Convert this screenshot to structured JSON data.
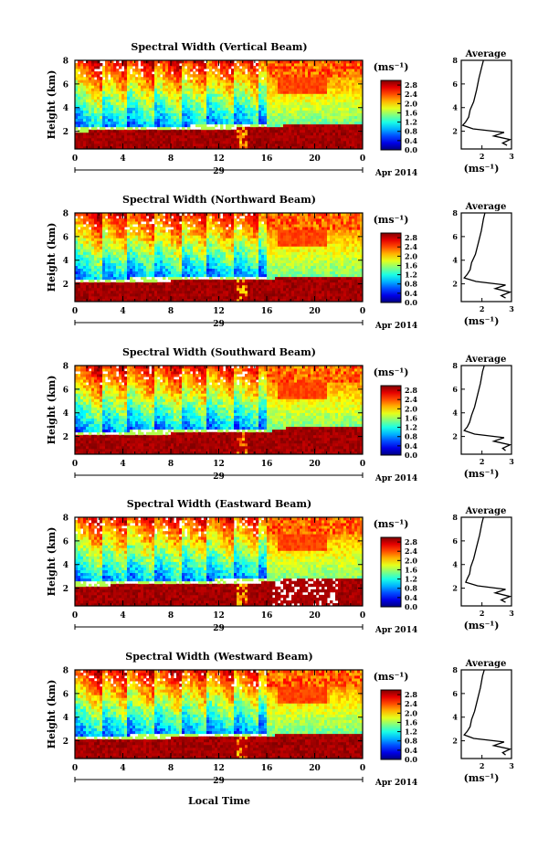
{
  "figure": {
    "xlabel": "Local Time",
    "colorbar_unit": "(ms⁻¹)",
    "colorbar_ticks": [
      "0.0",
      "0.4",
      "0.8",
      "1.2",
      "1.6",
      "2.0",
      "2.4",
      "2.8"
    ],
    "colorbar_range": [
      0,
      3.0
    ],
    "date_day": "29",
    "date_month_year": "Apr 2014",
    "profile_title": "Average",
    "profile_xlabel": "(ms⁻¹)"
  },
  "chart_data": [
    {
      "type": "heatmap",
      "title": "Spectral Width (Vertical Beam)",
      "ylabel": "Height (km)",
      "x_ticks": [
        "0",
        "4",
        "8",
        "12",
        "16",
        "20",
        "0"
      ],
      "y_ticks": [
        "2",
        "4",
        "6",
        "8"
      ],
      "xlim": [
        0,
        24
      ],
      "ylim": [
        0.5,
        8.0
      ],
      "low_band_top_km": [
        2.0,
        2.1,
        2.2,
        2.3,
        2.6,
        2.6
      ],
      "band_x_hours": [
        0,
        5,
        10,
        16,
        18,
        24
      ],
      "profile": {
        "xlim": [
          1.3,
          3.0
        ],
        "ylim": [
          0.5,
          8.0
        ],
        "x_ticks": [
          "2",
          "3"
        ],
        "y_ticks": [
          "2",
          "4",
          "6",
          "8"
        ],
        "height_km": [
          0.8,
          1.0,
          1.3,
          1.6,
          1.9,
          2.2,
          2.5,
          2.8,
          3.2,
          3.8,
          4.5,
          5.5,
          6.5,
          7.5,
          8.0
        ],
        "value": [
          2.85,
          2.7,
          2.95,
          2.4,
          2.75,
          1.7,
          1.35,
          1.45,
          1.55,
          1.6,
          1.72,
          1.82,
          1.9,
          2.0,
          2.05
        ]
      }
    },
    {
      "type": "heatmap",
      "title": "Spectral Width (Northward Beam)",
      "ylabel": "Height (km)",
      "x_ticks": [
        "0",
        "4",
        "8",
        "12",
        "16",
        "20",
        "0"
      ],
      "y_ticks": [
        "2",
        "4",
        "6",
        "8"
      ],
      "xlim": [
        0,
        24
      ],
      "ylim": [
        0.5,
        8.0
      ],
      "low_band_top_km": [
        2.1,
        2.2,
        2.3,
        2.4,
        2.7,
        2.7
      ],
      "band_x_hours": [
        0,
        5,
        10,
        16,
        18,
        24
      ],
      "profile": {
        "xlim": [
          1.3,
          3.0
        ],
        "ylim": [
          0.5,
          8.0
        ],
        "x_ticks": [
          "2",
          "3"
        ],
        "y_ticks": [
          "2",
          "4",
          "6",
          "8"
        ],
        "height_km": [
          0.8,
          1.0,
          1.3,
          1.6,
          1.9,
          2.2,
          2.5,
          2.8,
          3.2,
          3.8,
          4.5,
          5.5,
          6.5,
          7.5,
          8.0
        ],
        "value": [
          2.8,
          2.65,
          2.95,
          2.45,
          2.8,
          1.8,
          1.4,
          1.5,
          1.6,
          1.65,
          1.78,
          1.88,
          1.98,
          2.05,
          2.1
        ]
      }
    },
    {
      "type": "heatmap",
      "title": "Spectral Width (Southward Beam)",
      "ylabel": "Height (km)",
      "x_ticks": [
        "0",
        "4",
        "8",
        "12",
        "16",
        "20",
        "0"
      ],
      "y_ticks": [
        "2",
        "4",
        "6",
        "8"
      ],
      "xlim": [
        0,
        24
      ],
      "ylim": [
        0.5,
        8.0
      ],
      "low_band_top_km": [
        2.1,
        2.2,
        2.3,
        2.4,
        2.8,
        2.8
      ],
      "band_x_hours": [
        0,
        5,
        10,
        16,
        18,
        24
      ],
      "profile": {
        "xlim": [
          1.3,
          3.0
        ],
        "ylim": [
          0.5,
          8.0
        ],
        "x_ticks": [
          "2",
          "3"
        ],
        "y_ticks": [
          "2",
          "4",
          "6",
          "8"
        ],
        "height_km": [
          0.8,
          1.0,
          1.3,
          1.6,
          1.9,
          2.2,
          2.5,
          2.8,
          3.2,
          3.8,
          4.5,
          5.5,
          6.5,
          7.5,
          8.0
        ],
        "value": [
          2.8,
          2.7,
          2.95,
          2.4,
          2.75,
          1.75,
          1.4,
          1.5,
          1.58,
          1.65,
          1.75,
          1.85,
          1.95,
          2.02,
          2.08
        ]
      }
    },
    {
      "type": "heatmap",
      "title": "Spectral Width (Eastward Beam)",
      "ylabel": "Height (km)",
      "x_ticks": [
        "0",
        "4",
        "8",
        "12",
        "16",
        "20",
        "0"
      ],
      "y_ticks": [
        "2",
        "4",
        "6",
        "8"
      ],
      "xlim": [
        0,
        24
      ],
      "ylim": [
        0.5,
        8.0
      ],
      "low_band_top_km": [
        2.2,
        2.3,
        2.4,
        2.5,
        2.9,
        2.9
      ],
      "band_x_hours": [
        0,
        5,
        10,
        16,
        18,
        24
      ],
      "profile": {
        "xlim": [
          1.3,
          3.0
        ],
        "ylim": [
          0.5,
          8.0
        ],
        "x_ticks": [
          "2",
          "3"
        ],
        "y_ticks": [
          "2",
          "4",
          "6",
          "8"
        ],
        "height_km": [
          0.8,
          1.0,
          1.3,
          1.6,
          1.9,
          2.2,
          2.5,
          2.8,
          3.2,
          3.8,
          4.5,
          5.5,
          6.5,
          7.5,
          8.0
        ],
        "value": [
          2.8,
          2.65,
          2.95,
          2.45,
          2.8,
          1.85,
          1.45,
          1.5,
          1.58,
          1.62,
          1.72,
          1.82,
          1.92,
          2.0,
          2.05
        ]
      }
    },
    {
      "type": "heatmap",
      "title": "Spectral Width (Westward Beam)",
      "ylabel": "Height (km)",
      "x_ticks": [
        "0",
        "4",
        "8",
        "12",
        "16",
        "20",
        "0"
      ],
      "y_ticks": [
        "2",
        "4",
        "6",
        "8"
      ],
      "xlim": [
        0,
        24
      ],
      "ylim": [
        0.5,
        8.0
      ],
      "low_band_top_km": [
        2.1,
        2.2,
        2.3,
        2.4,
        2.7,
        2.7
      ],
      "band_x_hours": [
        0,
        5,
        10,
        16,
        18,
        24
      ],
      "profile": {
        "xlim": [
          1.3,
          3.0
        ],
        "ylim": [
          0.5,
          8.0
        ],
        "x_ticks": [
          "2",
          "3"
        ],
        "y_ticks": [
          "2",
          "4",
          "6",
          "8"
        ],
        "height_km": [
          0.8,
          1.0,
          1.3,
          1.6,
          1.9,
          2.2,
          2.5,
          2.8,
          3.2,
          3.8,
          4.5,
          5.5,
          6.5,
          7.5,
          8.0
        ],
        "value": [
          2.8,
          2.7,
          2.95,
          2.4,
          2.75,
          1.72,
          1.4,
          1.5,
          1.6,
          1.65,
          1.75,
          1.85,
          1.95,
          2.02,
          2.08
        ]
      }
    }
  ]
}
